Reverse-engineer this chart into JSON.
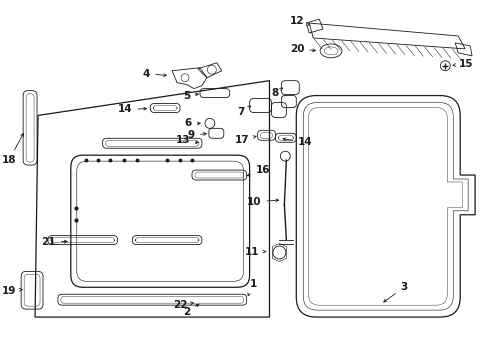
{
  "bg_color": "#ffffff",
  "line_color": "#1a1a1a",
  "fig_width": 4.89,
  "fig_height": 3.6,
  "dpi": 100,
  "font_size": 7.5
}
